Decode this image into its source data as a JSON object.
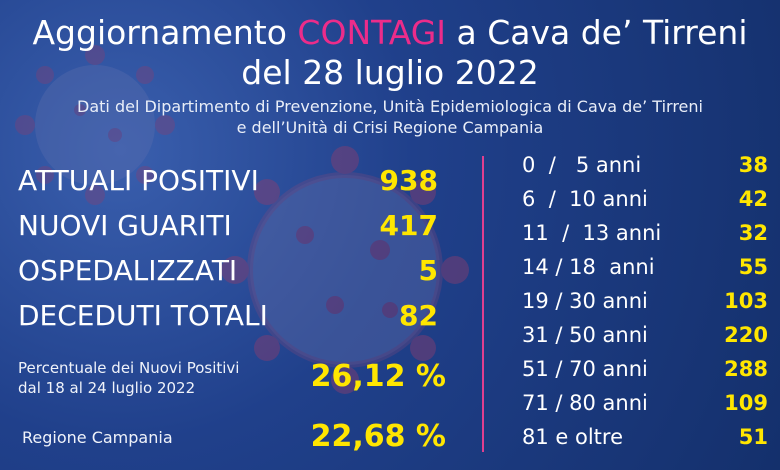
{
  "header": {
    "title_before": "Aggiornamento ",
    "title_highlight": "CONTAGI",
    "title_after": " a Cava de’ Tirreni",
    "date_line": "del 28 luglio 2022",
    "source_line1": "Dati del Dipartimento di Prevenzione, Unità Epidemiologica di Cava de’ Tirreni",
    "source_line2": "e dell’Unità di Crisi Regione Campania"
  },
  "stats": [
    {
      "label": "ATTUALI POSITIVI",
      "value": "938"
    },
    {
      "label": "NUOVI GUARITI",
      "value": "417"
    },
    {
      "label": "OSPEDALIZZATI",
      "value": "5"
    },
    {
      "label": "DECEDUTI TOTALI",
      "value": "82"
    }
  ],
  "percentages": {
    "new_positives_label_line1": "Percentuale dei Nuovi Positivi",
    "new_positives_label_line2": "dal 18 al 24 luglio 2022",
    "new_positives_value": "26,12  %",
    "region_label": "Regione Campania",
    "region_value": "22,68 %"
  },
  "age_groups": [
    {
      "label": "0  /   5 anni",
      "value": "38"
    },
    {
      "label": "6  /  10 anni",
      "value": "42"
    },
    {
      "label": "11  /  13 anni",
      "value": "32"
    },
    {
      "label": "14 / 18  anni",
      "value": "55"
    },
    {
      "label": "19 / 30 anni",
      "value": "103"
    },
    {
      "label": "31 / 50 anni",
      "value": "220"
    },
    {
      "label": "51 / 70 anni",
      "value": "288"
    },
    {
      "label": "71 / 80 anni",
      "value": "109"
    },
    {
      "label": "81 e oltre",
      "value": "51"
    }
  ],
  "colors": {
    "background": "#1d3b82",
    "highlight": "#ec2c8a",
    "values": "#ffe600",
    "divider": "#e03f8f"
  },
  "icons": [
    "coronavirus-illustration"
  ]
}
